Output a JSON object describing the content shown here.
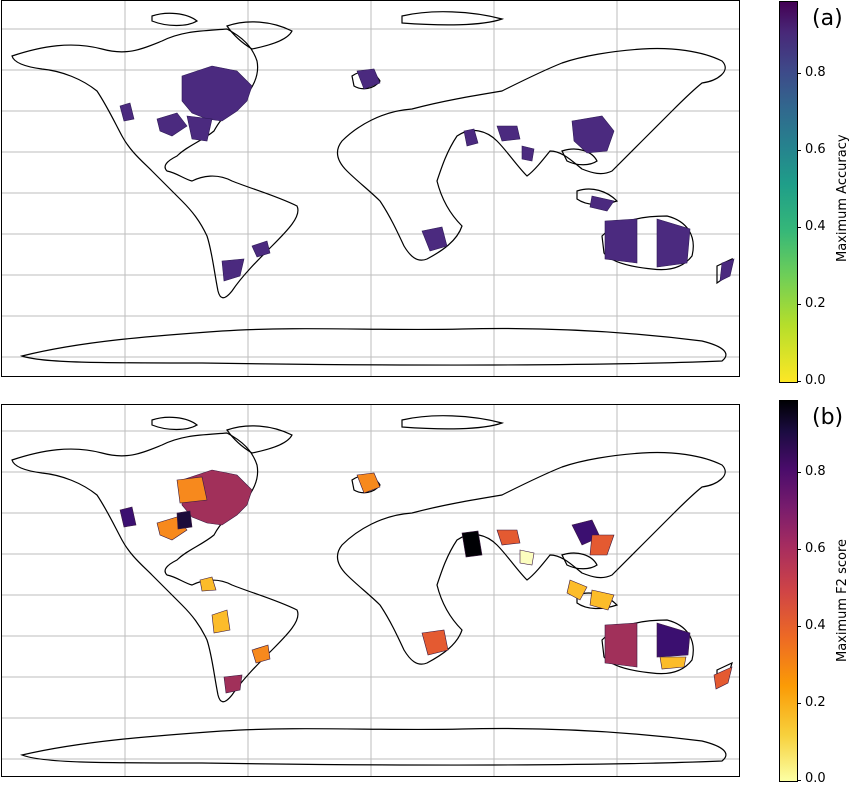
{
  "panels": [
    {
      "letter": "(a)",
      "colorbar_label": "Maximum Accuracy",
      "colormap": "viridis",
      "colorbar_range": [
        0.0,
        0.95
      ],
      "ticks": [
        "0.0",
        "0.2",
        "0.4",
        "0.6",
        "0.8"
      ],
      "region_color": "#4b2a7f"
    },
    {
      "letter": "(b)",
      "colorbar_label": "Maximum F2 score",
      "colormap": "inferno",
      "colorbar_range": [
        0.0,
        0.95
      ],
      "ticks": [
        "0.0",
        "0.2",
        "0.4",
        "0.6",
        "0.8"
      ],
      "region_color": "#a1305a"
    }
  ],
  "map": {
    "gridlines": true,
    "coastline_color": "#000000"
  }
}
